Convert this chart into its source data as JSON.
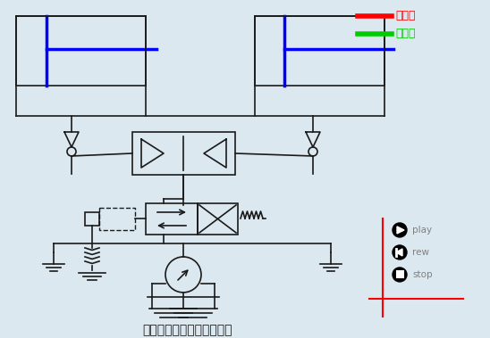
{
  "bg_color": "#dce8f0",
  "title": "采用分流集流阀的同步回路",
  "title_fontsize": 10,
  "legend_items": [
    {
      "label": "进油路",
      "color": "#ff0000"
    },
    {
      "label": "回油路",
      "color": "#00cc00"
    }
  ],
  "line_color": "#1a1a1a",
  "blue_line_color": "#0000ff",
  "red_cross_color": "#ff0000",
  "play_buttons": [
    {
      "symbol": "play"
    },
    {
      "symbol": "rew"
    },
    {
      "symbol": "stop"
    }
  ]
}
